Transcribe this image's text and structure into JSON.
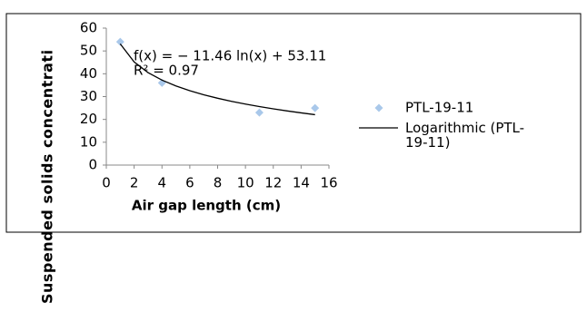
{
  "chart_data": {
    "type": "scatter",
    "y_label": "Suspended solids concentrati",
    "x_label": "Air gap length (cm)",
    "annotations": [
      "f(x) = − 11.46 ln(x) + 53.11",
      "R² = 0.97"
    ],
    "xlim": [
      0,
      16
    ],
    "xticks": [
      0,
      2,
      4,
      6,
      8,
      10,
      12,
      14,
      16
    ],
    "ylim": [
      0,
      60
    ],
    "yticks": [
      0,
      10,
      20,
      30,
      40,
      50,
      60
    ],
    "series": [
      {
        "name": "PTL-19-11",
        "type": "scatter",
        "color": "#a9c8ea",
        "x": [
          1,
          4,
          11,
          15
        ],
        "values": [
          54,
          36,
          23,
          25
        ]
      },
      {
        "name": "Logarithmic (PTL-19-11)",
        "type": "line",
        "color": "#000000",
        "x": [
          1,
          2,
          3,
          4,
          5,
          6,
          7,
          8,
          9,
          10,
          11,
          12,
          13,
          14,
          15
        ],
        "values": [
          53.11,
          45.17,
          40.52,
          37.22,
          34.67,
          32.58,
          30.81,
          29.28,
          27.93,
          26.72,
          25.63,
          24.63,
          23.72,
          22.87,
          22.08
        ]
      }
    ]
  }
}
